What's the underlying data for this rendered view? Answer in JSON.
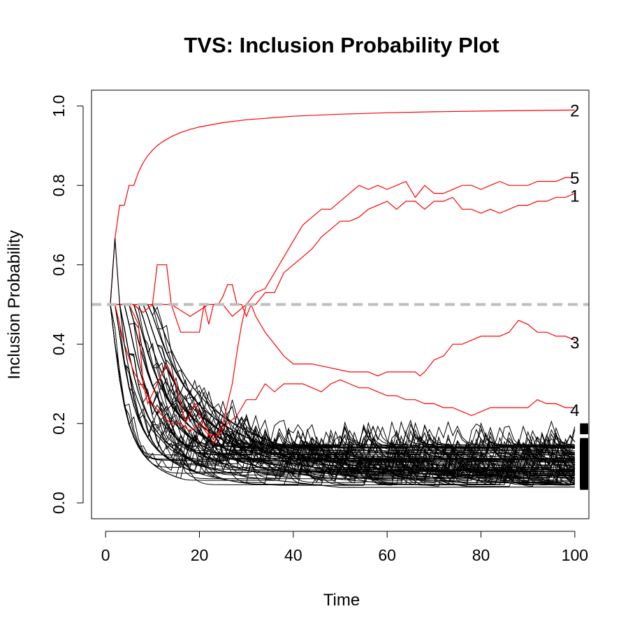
{
  "chart_data": {
    "type": "line",
    "title": "TVS: Inclusion Probability Plot",
    "xlabel": "Time",
    "ylabel": "Inclusion Probability",
    "xlim": [
      -3,
      103
    ],
    "ylim": [
      -0.04,
      1.04
    ],
    "x_ticks": [
      "0",
      "20",
      "40",
      "60",
      "80",
      "100"
    ],
    "y_ticks": [
      "0.0",
      "0.2",
      "0.4",
      "0.6",
      "0.8",
      "1.0"
    ],
    "threshold": {
      "y": 0.5,
      "color": "#bebebe",
      "style": "dashed"
    },
    "highlight_color": "#ff0000",
    "other_color": "#000000",
    "series": [
      {
        "name": "2",
        "color": "#ff0000",
        "points": [
          [
            1,
            0.5
          ],
          [
            2,
            0.6667
          ],
          [
            3,
            0.75
          ],
          [
            4,
            0.75
          ],
          [
            5,
            0.8
          ],
          [
            6,
            0.8
          ],
          [
            7,
            0.8333
          ],
          [
            8,
            0.8571
          ],
          [
            9,
            0.875
          ],
          [
            10,
            0.8889
          ],
          [
            11,
            0.9
          ],
          [
            12,
            0.9091
          ],
          [
            14,
            0.9231
          ],
          [
            16,
            0.9333
          ],
          [
            18,
            0.9412
          ],
          [
            20,
            0.9474
          ],
          [
            25,
            0.9583
          ],
          [
            30,
            0.9655
          ],
          [
            40,
            0.9744
          ],
          [
            50,
            0.9796
          ],
          [
            60,
            0.9831
          ],
          [
            70,
            0.9855
          ],
          [
            80,
            0.9873
          ],
          [
            90,
            0.9888
          ],
          [
            100,
            0.99
          ]
        ]
      },
      {
        "name": "5",
        "color": "#ff0000",
        "points": [
          [
            1,
            0.5
          ],
          [
            4,
            0.5
          ],
          [
            6,
            0.5
          ],
          [
            8,
            0.48
          ],
          [
            10,
            0.5
          ],
          [
            14,
            0.5
          ],
          [
            18,
            0.47
          ],
          [
            22,
            0.5
          ],
          [
            25,
            0.5
          ],
          [
            27,
            0.47
          ],
          [
            30,
            0.5
          ],
          [
            32,
            0.53
          ],
          [
            34,
            0.54
          ],
          [
            36,
            0.58
          ],
          [
            38,
            0.62
          ],
          [
            40,
            0.66
          ],
          [
            42,
            0.7
          ],
          [
            44,
            0.72
          ],
          [
            46,
            0.74
          ],
          [
            48,
            0.74
          ],
          [
            50,
            0.76
          ],
          [
            52,
            0.78
          ],
          [
            54,
            0.8
          ],
          [
            56,
            0.79
          ],
          [
            58,
            0.8
          ],
          [
            60,
            0.79
          ],
          [
            62,
            0.8
          ],
          [
            64,
            0.81
          ],
          [
            66,
            0.77
          ],
          [
            68,
            0.8
          ],
          [
            70,
            0.78
          ],
          [
            72,
            0.78
          ],
          [
            74,
            0.79
          ],
          [
            76,
            0.8
          ],
          [
            78,
            0.8
          ],
          [
            80,
            0.79
          ],
          [
            82,
            0.8
          ],
          [
            84,
            0.81
          ],
          [
            86,
            0.8
          ],
          [
            88,
            0.8
          ],
          [
            90,
            0.8
          ],
          [
            92,
            0.81
          ],
          [
            94,
            0.81
          ],
          [
            96,
            0.81
          ],
          [
            98,
            0.82
          ],
          [
            100,
            0.82
          ]
        ]
      },
      {
        "name": "1",
        "color": "#ff0000",
        "points": [
          [
            1,
            0.5
          ],
          [
            3,
            0.5
          ],
          [
            5,
            0.5
          ],
          [
            7,
            0.45
          ],
          [
            8,
            0.3
          ],
          [
            9,
            0.25
          ],
          [
            11,
            0.3
          ],
          [
            13,
            0.35
          ],
          [
            15,
            0.3
          ],
          [
            17,
            0.2
          ],
          [
            19,
            0.25
          ],
          [
            21,
            0.2
          ],
          [
            23,
            0.15
          ],
          [
            25,
            0.2
          ],
          [
            27,
            0.3
          ],
          [
            28,
            0.38
          ],
          [
            29,
            0.45
          ],
          [
            30,
            0.5
          ],
          [
            32,
            0.5
          ],
          [
            34,
            0.53
          ],
          [
            36,
            0.53
          ],
          [
            38,
            0.58
          ],
          [
            40,
            0.6
          ],
          [
            42,
            0.62
          ],
          [
            44,
            0.64
          ],
          [
            46,
            0.67
          ],
          [
            48,
            0.69
          ],
          [
            50,
            0.71
          ],
          [
            52,
            0.71
          ],
          [
            54,
            0.72
          ],
          [
            56,
            0.74
          ],
          [
            58,
            0.75
          ],
          [
            60,
            0.76
          ],
          [
            62,
            0.74
          ],
          [
            64,
            0.76
          ],
          [
            66,
            0.76
          ],
          [
            68,
            0.74
          ],
          [
            70,
            0.76
          ],
          [
            72,
            0.76
          ],
          [
            74,
            0.77
          ],
          [
            76,
            0.74
          ],
          [
            78,
            0.74
          ],
          [
            80,
            0.73
          ],
          [
            82,
            0.74
          ],
          [
            84,
            0.73
          ],
          [
            86,
            0.74
          ],
          [
            88,
            0.75
          ],
          [
            90,
            0.75
          ],
          [
            92,
            0.76
          ],
          [
            94,
            0.76
          ],
          [
            96,
            0.77
          ],
          [
            98,
            0.77
          ],
          [
            100,
            0.78
          ]
        ]
      },
      {
        "name": "3",
        "color": "#ff0000",
        "points": [
          [
            1,
            0.5
          ],
          [
            2,
            0.5
          ],
          [
            4,
            0.5
          ],
          [
            6,
            0.5
          ],
          [
            8,
            0.5
          ],
          [
            10,
            0.5
          ],
          [
            11,
            0.6
          ],
          [
            13,
            0.6
          ],
          [
            14,
            0.5
          ],
          [
            16,
            0.43
          ],
          [
            18,
            0.43
          ],
          [
            20,
            0.43
          ],
          [
            21,
            0.5
          ],
          [
            22,
            0.45
          ],
          [
            23,
            0.5
          ],
          [
            24,
            0.5
          ],
          [
            25,
            0.52
          ],
          [
            26,
            0.55
          ],
          [
            27,
            0.55
          ],
          [
            28,
            0.5
          ],
          [
            29,
            0.5
          ],
          [
            30,
            0.47
          ],
          [
            31,
            0.5
          ],
          [
            32,
            0.47
          ],
          [
            34,
            0.43
          ],
          [
            36,
            0.4
          ],
          [
            38,
            0.37
          ],
          [
            40,
            0.35
          ],
          [
            44,
            0.35
          ],
          [
            48,
            0.34
          ],
          [
            52,
            0.33
          ],
          [
            56,
            0.33
          ],
          [
            58,
            0.32
          ],
          [
            60,
            0.33
          ],
          [
            62,
            0.33
          ],
          [
            64,
            0.33
          ],
          [
            66,
            0.33
          ],
          [
            67,
            0.32
          ],
          [
            68,
            0.33
          ],
          [
            70,
            0.36
          ],
          [
            72,
            0.37
          ],
          [
            74,
            0.4
          ],
          [
            76,
            0.4
          ],
          [
            78,
            0.41
          ],
          [
            80,
            0.42
          ],
          [
            82,
            0.42
          ],
          [
            84,
            0.42
          ],
          [
            86,
            0.43
          ],
          [
            88,
            0.46
          ],
          [
            90,
            0.45
          ],
          [
            92,
            0.43
          ],
          [
            94,
            0.43
          ],
          [
            96,
            0.42
          ],
          [
            98,
            0.42
          ],
          [
            100,
            0.41
          ]
        ]
      },
      {
        "name": "4",
        "color": "#ff0000",
        "points": [
          [
            1,
            0.5
          ],
          [
            2,
            0.5
          ],
          [
            4,
            0.4
          ],
          [
            6,
            0.33
          ],
          [
            8,
            0.29
          ],
          [
            10,
            0.25
          ],
          [
            12,
            0.22
          ],
          [
            14,
            0.2
          ],
          [
            16,
            0.2
          ],
          [
            18,
            0.18
          ],
          [
            20,
            0.2
          ],
          [
            22,
            0.17
          ],
          [
            24,
            0.17
          ],
          [
            26,
            0.2
          ],
          [
            28,
            0.22
          ],
          [
            30,
            0.26
          ],
          [
            32,
            0.26
          ],
          [
            34,
            0.3
          ],
          [
            36,
            0.28
          ],
          [
            38,
            0.3
          ],
          [
            40,
            0.3
          ],
          [
            42,
            0.3
          ],
          [
            44,
            0.29
          ],
          [
            46,
            0.28
          ],
          [
            48,
            0.3
          ],
          [
            50,
            0.31
          ],
          [
            52,
            0.3
          ],
          [
            54,
            0.29
          ],
          [
            56,
            0.29
          ],
          [
            58,
            0.28
          ],
          [
            60,
            0.27
          ],
          [
            62,
            0.27
          ],
          [
            64,
            0.26
          ],
          [
            66,
            0.26
          ],
          [
            68,
            0.25
          ],
          [
            70,
            0.25
          ],
          [
            72,
            0.24
          ],
          [
            74,
            0.24
          ],
          [
            76,
            0.23
          ],
          [
            78,
            0.22
          ],
          [
            80,
            0.23
          ],
          [
            82,
            0.24
          ],
          [
            84,
            0.24
          ],
          [
            86,
            0.24
          ],
          [
            88,
            0.24
          ],
          [
            90,
            0.24
          ],
          [
            92,
            0.26
          ],
          [
            94,
            0.25
          ],
          [
            96,
            0.25
          ],
          [
            98,
            0.24
          ],
          [
            100,
            0.24
          ]
        ]
      },
      {
        "name": "",
        "color": "#000000",
        "points": [
          [
            1,
            0.5
          ],
          [
            2,
            0.667
          ],
          [
            3,
            0.5
          ],
          [
            4,
            0.4
          ],
          [
            5,
            0.333
          ],
          [
            6,
            0.286
          ],
          [
            8,
            0.222
          ],
          [
            10,
            0.182
          ],
          [
            14,
            0.133
          ],
          [
            20,
            0.095
          ],
          [
            30,
            0.065
          ],
          [
            50,
            0.039
          ],
          [
            100,
            0.04
          ]
        ]
      }
    ],
    "background_series": {
      "count": 90,
      "color": "#000000",
      "start_value": 0.5,
      "shape": "starting at 0.5, decaying roughly as 1/t to an end value between 0.04 and 0.15 at Time 100, with jumps",
      "end_range": [
        0.04,
        0.15
      ]
    },
    "series_labels": [
      {
        "text": "2",
        "x": 100,
        "y": 0.99
      },
      {
        "text": "5",
        "x": 100,
        "y": 0.82
      },
      {
        "text": "1",
        "x": 100,
        "y": 0.775
      },
      {
        "text": "3",
        "x": 100,
        "y": 0.405
      },
      {
        "text": "4",
        "x": 100,
        "y": 0.235
      }
    ]
  }
}
